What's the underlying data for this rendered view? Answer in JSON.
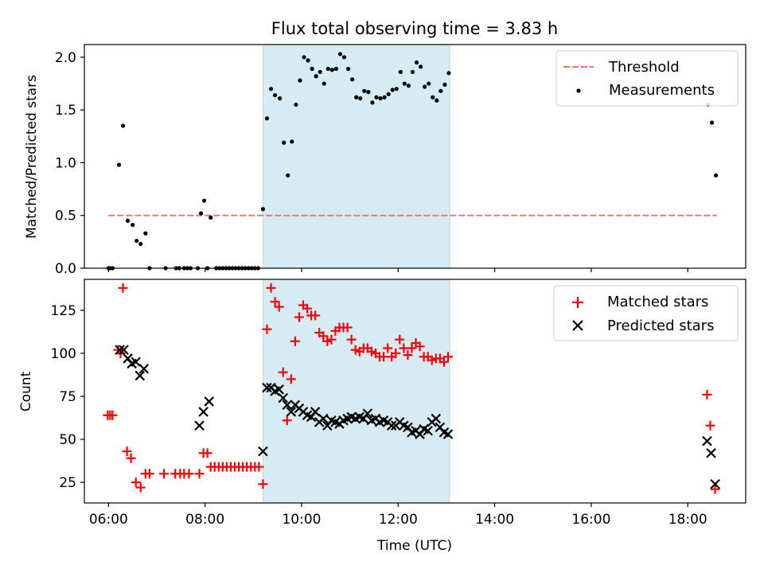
{
  "chart_data": [
    {
      "type": "scatter",
      "title": "Flux total observing time = 3.83 h",
      "xlabel": "",
      "ylabel": "Matched/Predicted stars",
      "ylim": [
        0,
        2.12
      ],
      "yticks": [
        "0.0",
        "0.5",
        "1.0",
        "1.5",
        "2.0"
      ],
      "xticks_labeled": false,
      "shaded_interval": [
        "09:12",
        "13:04"
      ],
      "shade_color": "#add8e6",
      "legend_position": "top-right",
      "threshold": {
        "name": "Threshold",
        "value": 0.5,
        "x_range": [
          "06:00",
          "18:36"
        ],
        "color": "#ff7070",
        "style": "dashed"
      },
      "series": [
        {
          "name": "Measurements",
          "color": "#000000",
          "marker": "dot",
          "points": [
            [
              "06:00",
              0.0
            ],
            [
              "06:02",
              0.0
            ],
            [
              "06:05",
              0.0
            ],
            [
              "06:13",
              0.98
            ],
            [
              "06:18",
              1.35
            ],
            [
              "06:24",
              0.45
            ],
            [
              "06:30",
              0.41
            ],
            [
              "06:35",
              0.26
            ],
            [
              "06:40",
              0.23
            ],
            [
              "06:46",
              0.33
            ],
            [
              "06:51",
              0.0
            ],
            [
              "07:11",
              0.0
            ],
            [
              "07:24",
              0.0
            ],
            [
              "07:28",
              0.0
            ],
            [
              "07:34",
              0.0
            ],
            [
              "07:38",
              0.0
            ],
            [
              "07:42",
              0.0
            ],
            [
              "07:51",
              0.0
            ],
            [
              "07:55",
              0.52
            ],
            [
              "07:59",
              0.64
            ],
            [
              "08:03",
              0.0
            ],
            [
              "08:07",
              0.48
            ],
            [
              "08:14",
              0.0
            ],
            [
              "08:18",
              0.0
            ],
            [
              "08:22",
              0.0
            ],
            [
              "08:26",
              0.0
            ],
            [
              "08:30",
              0.0
            ],
            [
              "08:34",
              0.0
            ],
            [
              "08:38",
              0.0
            ],
            [
              "08:42",
              0.0
            ],
            [
              "08:46",
              0.0
            ],
            [
              "08:50",
              0.0
            ],
            [
              "08:54",
              0.0
            ],
            [
              "08:58",
              0.0
            ],
            [
              "09:02",
              0.0
            ],
            [
              "09:06",
              0.0
            ],
            [
              "09:12",
              0.56
            ],
            [
              "09:17",
              1.42
            ],
            [
              "09:22",
              1.7
            ],
            [
              "09:27",
              1.64
            ],
            [
              "09:33",
              1.61
            ],
            [
              "09:38",
              1.19
            ],
            [
              "09:43",
              0.88
            ],
            [
              "09:48",
              1.2
            ],
            [
              "09:53",
              1.55
            ],
            [
              "09:58",
              1.78
            ],
            [
              "10:03",
              2.0
            ],
            [
              "10:08",
              1.97
            ],
            [
              "10:13",
              1.89
            ],
            [
              "10:18",
              1.82
            ],
            [
              "10:23",
              1.86
            ],
            [
              "10:28",
              1.75
            ],
            [
              "10:33",
              1.89
            ],
            [
              "10:38",
              1.88
            ],
            [
              "10:43",
              1.89
            ],
            [
              "10:48",
              2.03
            ],
            [
              "10:53",
              2.0
            ],
            [
              "10:58",
              1.89
            ],
            [
              "11:03",
              1.79
            ],
            [
              "11:08",
              1.62
            ],
            [
              "11:13",
              1.61
            ],
            [
              "11:18",
              1.68
            ],
            [
              "11:23",
              1.67
            ],
            [
              "11:28",
              1.57
            ],
            [
              "11:33",
              1.62
            ],
            [
              "11:38",
              1.61
            ],
            [
              "11:43",
              1.62
            ],
            [
              "11:48",
              1.65
            ],
            [
              "11:53",
              1.69
            ],
            [
              "11:58",
              1.7
            ],
            [
              "12:03",
              1.86
            ],
            [
              "12:08",
              1.75
            ],
            [
              "12:13",
              1.73
            ],
            [
              "12:18",
              1.86
            ],
            [
              "12:23",
              1.95
            ],
            [
              "12:28",
              1.91
            ],
            [
              "12:33",
              1.72
            ],
            [
              "12:38",
              1.75
            ],
            [
              "12:43",
              1.62
            ],
            [
              "12:48",
              1.59
            ],
            [
              "12:53",
              1.68
            ],
            [
              "12:58",
              1.74
            ],
            [
              "13:03",
              1.85
            ],
            [
              "18:25",
              1.55
            ],
            [
              "18:30",
              1.38
            ],
            [
              "18:35",
              0.88
            ]
          ]
        }
      ]
    },
    {
      "type": "scatter",
      "title": "",
      "xlabel": "Time (UTC)",
      "ylabel": "Count",
      "ylim": [
        13,
        143
      ],
      "yticks": [
        "25",
        "50",
        "75",
        "100",
        "125"
      ],
      "xticks": [
        "06:00",
        "08:00",
        "10:00",
        "12:00",
        "14:00",
        "16:00",
        "18:00"
      ],
      "shaded_interval": [
        "09:12",
        "13:04"
      ],
      "shade_color": "#add8e6",
      "legend_position": "top-right",
      "series": [
        {
          "name": "Matched stars",
          "color": "#ff0000",
          "marker": "plus",
          "points": [
            [
              "05:59",
              64
            ],
            [
              "06:02",
              64
            ],
            [
              "06:05",
              64
            ],
            [
              "06:12",
              102
            ],
            [
              "06:15",
              100
            ],
            [
              "06:18",
              138
            ],
            [
              "06:23",
              43
            ],
            [
              "06:28",
              39
            ],
            [
              "06:34",
              25
            ],
            [
              "06:40",
              22
            ],
            [
              "06:46",
              30
            ],
            [
              "06:51",
              30
            ],
            [
              "07:09",
              30
            ],
            [
              "07:23",
              30
            ],
            [
              "07:29",
              30
            ],
            [
              "07:34",
              30
            ],
            [
              "07:40",
              30
            ],
            [
              "07:53",
              30
            ],
            [
              "07:58",
              42
            ],
            [
              "08:03",
              42
            ],
            [
              "08:07",
              34
            ],
            [
              "08:12",
              34
            ],
            [
              "08:17",
              34
            ],
            [
              "08:22",
              34
            ],
            [
              "08:27",
              34
            ],
            [
              "08:32",
              34
            ],
            [
              "08:37",
              34
            ],
            [
              "08:42",
              34
            ],
            [
              "08:47",
              34
            ],
            [
              "08:52",
              34
            ],
            [
              "08:57",
              34
            ],
            [
              "09:02",
              34
            ],
            [
              "09:07",
              34
            ],
            [
              "09:12",
              24
            ],
            [
              "09:17",
              114
            ],
            [
              "09:22",
              138
            ],
            [
              "09:27",
              130
            ],
            [
              "09:32",
              127
            ],
            [
              "09:37",
              89
            ],
            [
              "09:42",
              61
            ],
            [
              "09:47",
              85
            ],
            [
              "09:52",
              107
            ],
            [
              "09:57",
              121
            ],
            [
              "10:02",
              128
            ],
            [
              "10:07",
              126
            ],
            [
              "10:12",
              122
            ],
            [
              "10:17",
              122
            ],
            [
              "10:22",
              112
            ],
            [
              "10:27",
              110
            ],
            [
              "10:32",
              107
            ],
            [
              "10:37",
              108
            ],
            [
              "10:42",
              113
            ],
            [
              "10:47",
              115
            ],
            [
              "10:52",
              115
            ],
            [
              "10:57",
              115
            ],
            [
              "11:02",
              108
            ],
            [
              "11:07",
              102
            ],
            [
              "11:12",
              101
            ],
            [
              "11:17",
              103
            ],
            [
              "11:22",
              103
            ],
            [
              "11:27",
              101
            ],
            [
              "11:32",
              100
            ],
            [
              "11:37",
              98
            ],
            [
              "11:42",
              98
            ],
            [
              "11:47",
              103
            ],
            [
              "11:52",
              98
            ],
            [
              "11:57",
              100
            ],
            [
              "12:02",
              108
            ],
            [
              "12:07",
              103
            ],
            [
              "12:12",
              99
            ],
            [
              "12:17",
              103
            ],
            [
              "12:22",
              106
            ],
            [
              "12:27",
              104
            ],
            [
              "12:32",
              98
            ],
            [
              "12:37",
              98
            ],
            [
              "12:42",
              96
            ],
            [
              "12:47",
              97
            ],
            [
              "12:52",
              97
            ],
            [
              "12:57",
              95
            ],
            [
              "13:02",
              98
            ],
            [
              "18:24",
              76
            ],
            [
              "18:28",
              58
            ],
            [
              "18:34",
              21
            ]
          ]
        },
        {
          "name": "Predicted stars",
          "color": "#000000",
          "marker": "x",
          "points": [
            [
              "06:14",
              102
            ],
            [
              "06:19",
              102
            ],
            [
              "06:24",
              97
            ],
            [
              "06:29",
              94
            ],
            [
              "06:34",
              95
            ],
            [
              "06:39",
              87
            ],
            [
              "06:44",
              91
            ],
            [
              "07:53",
              58
            ],
            [
              "07:58",
              66
            ],
            [
              "08:05",
              72
            ],
            [
              "09:12",
              43
            ],
            [
              "09:17",
              80
            ],
            [
              "09:22",
              80
            ],
            [
              "09:27",
              78
            ],
            [
              "09:32",
              79
            ],
            [
              "09:37",
              74
            ],
            [
              "09:42",
              70
            ],
            [
              "09:47",
              66
            ],
            [
              "09:52",
              70
            ],
            [
              "09:57",
              68
            ],
            [
              "10:02",
              66
            ],
            [
              "10:07",
              64
            ],
            [
              "10:12",
              63
            ],
            [
              "10:17",
              66
            ],
            [
              "10:22",
              60
            ],
            [
              "10:27",
              62
            ],
            [
              "10:32",
              58
            ],
            [
              "10:37",
              61
            ],
            [
              "10:42",
              60
            ],
            [
              "10:47",
              59
            ],
            [
              "10:52",
              61
            ],
            [
              "10:57",
              62
            ],
            [
              "11:02",
              63
            ],
            [
              "11:07",
              62
            ],
            [
              "11:12",
              63
            ],
            [
              "11:17",
              62
            ],
            [
              "11:22",
              65
            ],
            [
              "11:27",
              61
            ],
            [
              "11:32",
              62
            ],
            [
              "11:37",
              60
            ],
            [
              "11:42",
              61
            ],
            [
              "11:47",
              60
            ],
            [
              "11:52",
              58
            ],
            [
              "11:57",
              58
            ],
            [
              "12:02",
              60
            ],
            [
              "12:07",
              58
            ],
            [
              "12:12",
              57
            ],
            [
              "12:17",
              54
            ],
            [
              "12:22",
              55
            ],
            [
              "12:27",
              53
            ],
            [
              "12:32",
              56
            ],
            [
              "12:37",
              55
            ],
            [
              "12:42",
              60
            ],
            [
              "12:47",
              62
            ],
            [
              "12:52",
              57
            ],
            [
              "12:57",
              54
            ],
            [
              "13:02",
              53
            ],
            [
              "18:24",
              49
            ],
            [
              "18:29",
              42
            ],
            [
              "18:34",
              24
            ]
          ]
        }
      ]
    }
  ]
}
